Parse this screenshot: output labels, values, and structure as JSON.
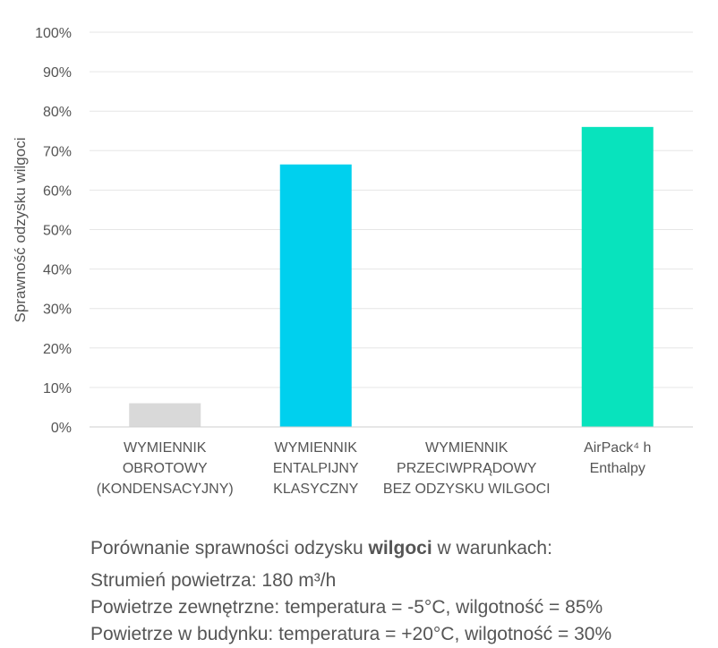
{
  "chart_data": {
    "type": "bar",
    "ylabel": "Sprawność odzysku wilgoci",
    "ylim": [
      0,
      100
    ],
    "y_ticks": [
      "0%",
      "10%",
      "20%",
      "30%",
      "40%",
      "50%",
      "60%",
      "70%",
      "80%",
      "90%",
      "100%"
    ],
    "grid": true,
    "categories": [
      [
        "WYMIENNIK",
        "OBROTOWY",
        "(KONDENSACYJNY)"
      ],
      [
        "WYMIENNIK",
        "ENTALPIJNY",
        "KLASYCZNY"
      ],
      [
        "WYMIENNIK",
        "PRZECIWPRĄDOWY",
        "BEZ ODZYSKU WILGOCI"
      ],
      [
        "AirPack⁴ h",
        "Enthalpy"
      ]
    ],
    "values": [
      6,
      66.5,
      0,
      76
    ],
    "colors": [
      "#d9d9d9",
      "#00d0ee",
      "#cccccc",
      "#08e3bd"
    ]
  },
  "caption": {
    "line1_prefix": "Porównanie sprawności odzysku ",
    "line1_bold": "wilgoci",
    "line1_suffix": " w warunkach:",
    "line2": "Strumień powietrza: 180 m³/h",
    "line3": "Powietrze zewnętrzne: temperatura = -5°C, wilgotność = 85%",
    "line4": "Powietrze w budynku: temperatura = +20°C, wilgotność = 30%"
  }
}
